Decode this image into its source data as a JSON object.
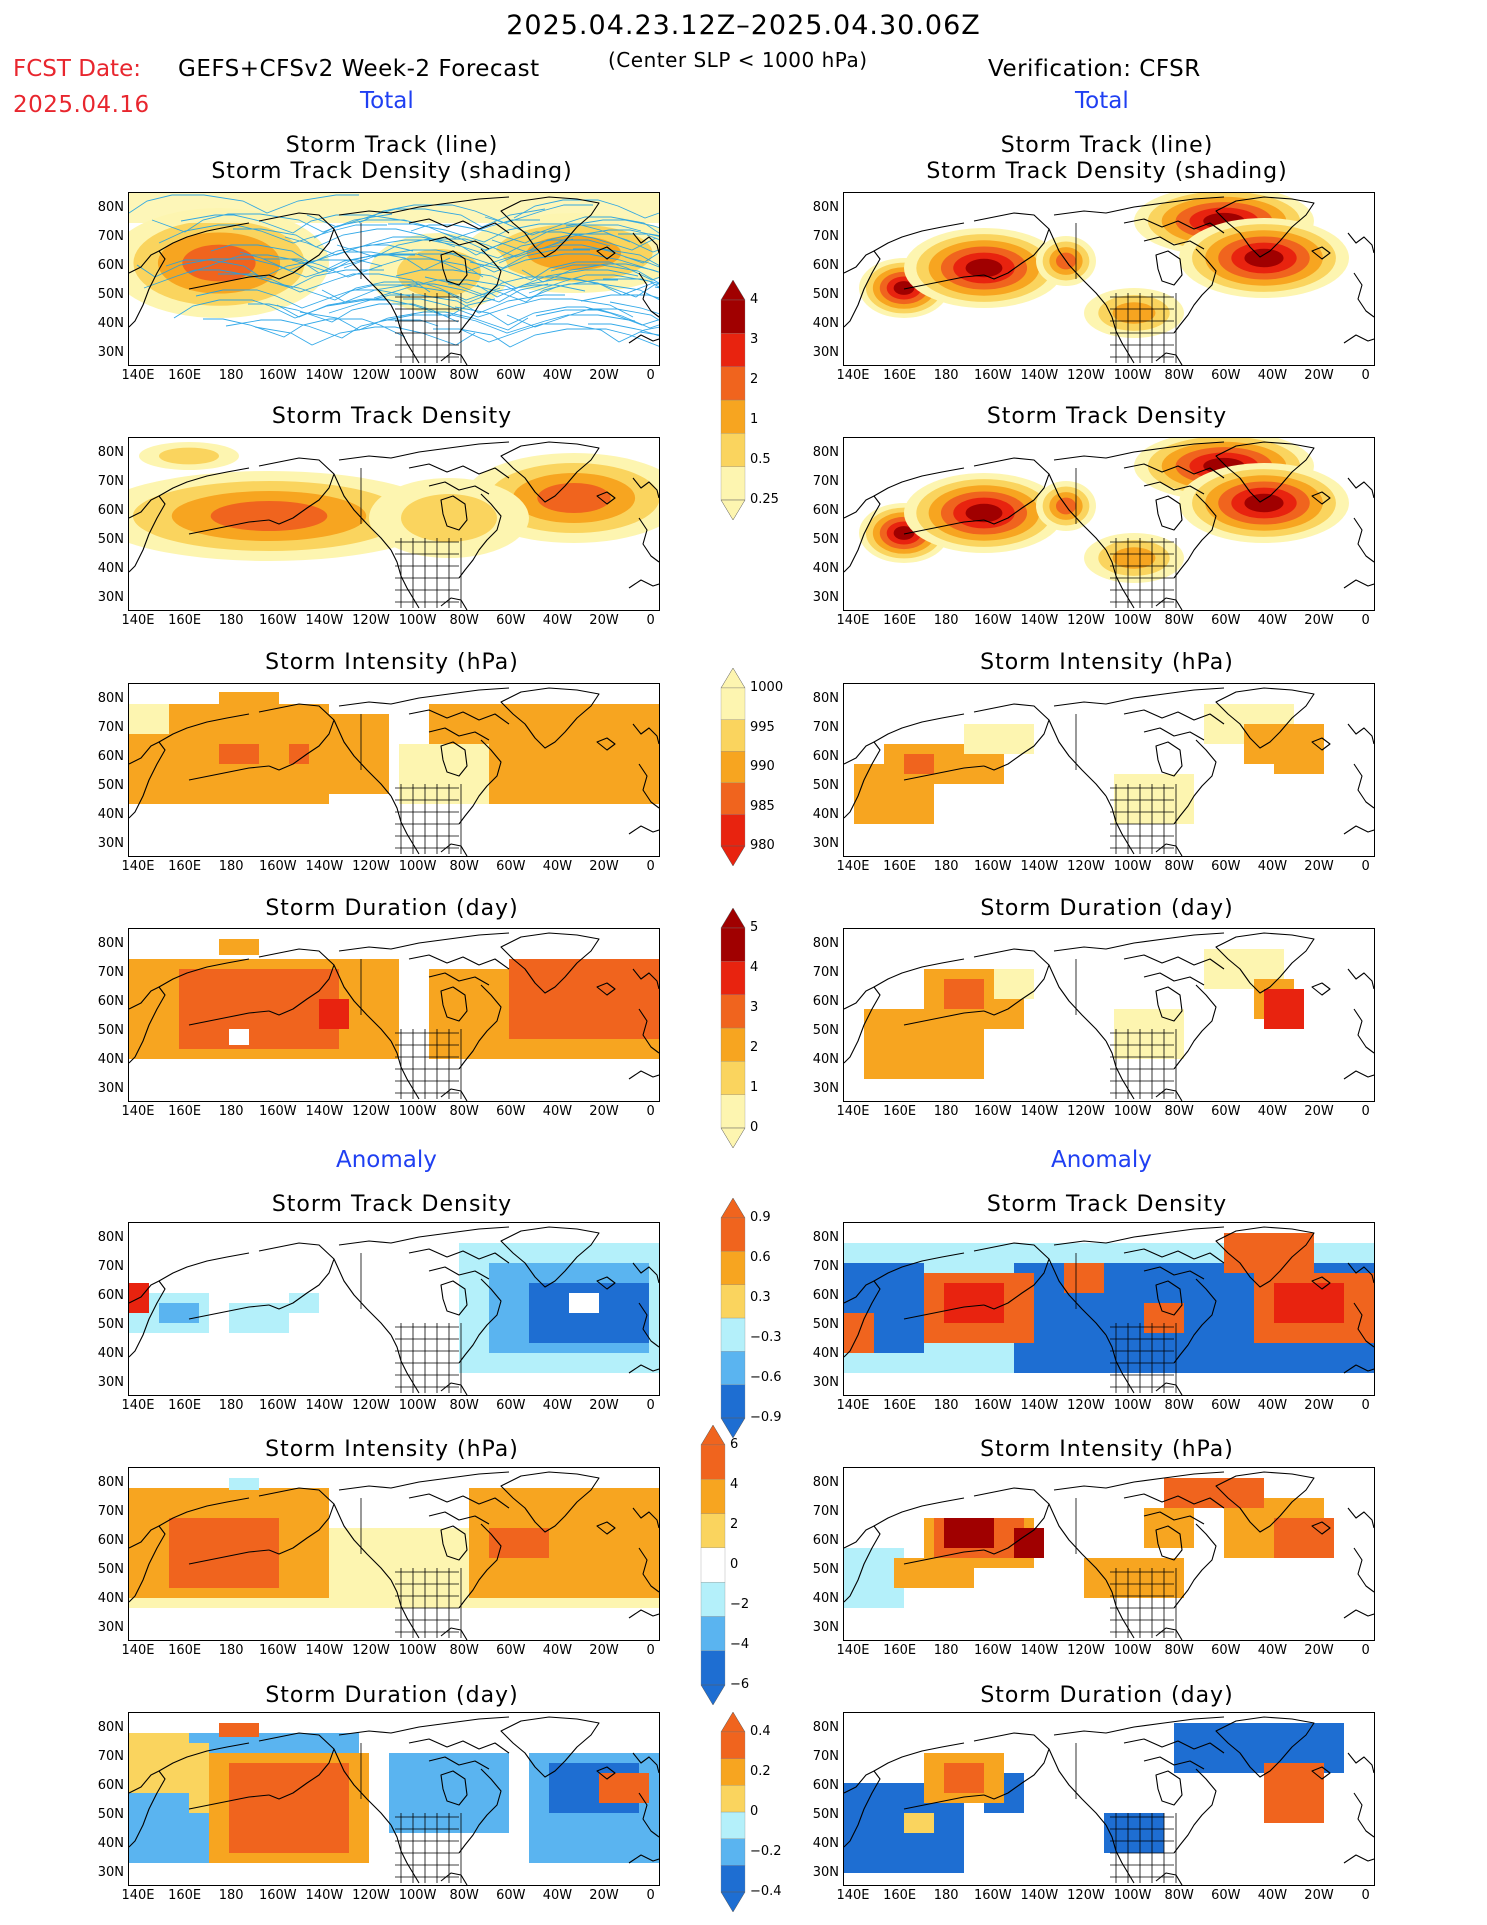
{
  "header": {
    "period": "2025.04.23.12Z–2025.04.30.06Z",
    "fcst_label": "FCST Date:",
    "fcst_date": "2025.04.16",
    "forecast_name": "GEFS+CFSv2 Week-2 Forecast",
    "center_slp": "(Center SLP < 1000 hPa)",
    "verification": "Verification: CFSR"
  },
  "sections": {
    "total_left": "Total",
    "total_right": "Total",
    "anomaly_left": "Anomaly",
    "anomaly_right": "Anomaly"
  },
  "panel_titles": {
    "track_line": "Storm Track (line)",
    "track_density_shading": "Storm Track Density (shading)",
    "track_density": "Storm Track Density",
    "intensity": "Storm Intensity (hPa)",
    "duration": "Storm Duration (day)"
  },
  "axes": {
    "lat_ticks": [
      "80N",
      "70N",
      "60N",
      "50N",
      "40N",
      "30N"
    ],
    "lon_ticks": [
      "140E",
      "160E",
      "180",
      "160W",
      "140W",
      "120W",
      "100W",
      "80W",
      "60W",
      "40W",
      "20W",
      "0"
    ]
  },
  "colorbars": {
    "track_density_total": [
      "4",
      "3",
      "2",
      "1",
      "0.5",
      "0.25"
    ],
    "intensity_total": [
      "1000",
      "995",
      "990",
      "985",
      "980"
    ],
    "duration_total": [
      "5",
      "4",
      "3",
      "2",
      "1",
      "0"
    ],
    "track_density_anom": [
      "0.9",
      "0.6",
      "0.3",
      "−0.3",
      "−0.6",
      "−0.9"
    ],
    "intensity_anom": [
      "6",
      "4",
      "2",
      "0",
      "−2",
      "−4",
      "−6"
    ],
    "duration_anom": [
      "0.4",
      "0.2",
      "0",
      "−0.2",
      "−0.4"
    ]
  },
  "colors": {
    "dark_red": "#a00000",
    "red": "#e8230f",
    "orange_red": "#f0641e",
    "orange": "#f7a520",
    "light_orange": "#fad45e",
    "pale_yellow": "#fdf5b0",
    "light_blue": "#b4f0fa",
    "mid_blue": "#5ab4f0",
    "blue": "#1e6ed2",
    "track_line": "#1ea0e6"
  }
}
